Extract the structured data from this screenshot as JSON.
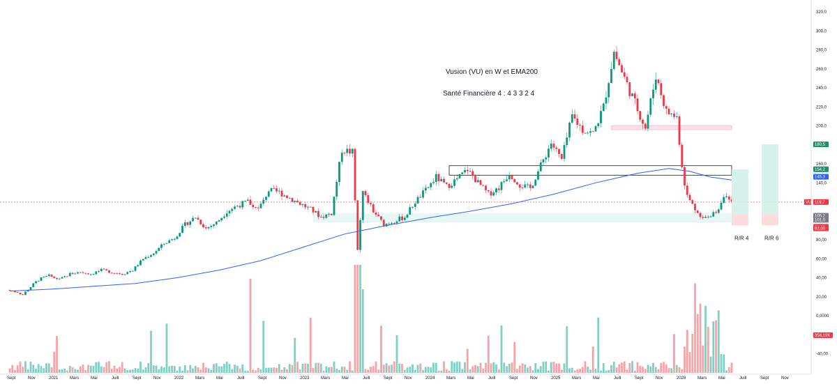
{
  "chart_data": {
    "type": "candlestick",
    "ticker": "VU",
    "annotations": {
      "title": "Vusion  (VU)  en  W et  EMA200",
      "subtitle": "Santé Financière 4 : 4 3 3 2 4"
    },
    "y_ticks": [
      320,
      300,
      280,
      260,
      240,
      220,
      200,
      180,
      160,
      140,
      120,
      100,
      80,
      60,
      40,
      20,
      0,
      -20,
      -40
    ],
    "y_tick_labels": [
      "320,0",
      "300,0",
      "280,0",
      "260,0",
      "240,0",
      "220,0",
      "200,0",
      "180,0",
      "160,0",
      "140,0",
      "120,0",
      "100,0",
      "80,00",
      "60,00",
      "40,00",
      "20,00",
      "0,0000",
      "-20,00",
      "-40,00"
    ],
    "x_ticks": [
      {
        "label": "Sept",
        "x": 0
      },
      {
        "label": "Nov",
        "x": 2
      },
      {
        "label": "2021",
        "x": 4
      },
      {
        "label": "Mars",
        "x": 6
      },
      {
        "label": "Mai",
        "x": 8
      },
      {
        "label": "Juill",
        "x": 10
      },
      {
        "label": "Sept",
        "x": 12
      },
      {
        "label": "Nov",
        "x": 14
      },
      {
        "label": "2022",
        "x": 16
      },
      {
        "label": "Mars",
        "x": 18
      },
      {
        "label": "Mai",
        "x": 20
      },
      {
        "label": "Juill",
        "x": 22
      },
      {
        "label": "Sept",
        "x": 24
      },
      {
        "label": "Nov",
        "x": 26
      },
      {
        "label": "2023",
        "x": 28
      },
      {
        "label": "Mars",
        "x": 30
      },
      {
        "label": "Mai",
        "x": 32
      },
      {
        "label": "Juill",
        "x": 34
      },
      {
        "label": "Sept",
        "x": 36
      },
      {
        "label": "Nov",
        "x": 38
      },
      {
        "label": "2024",
        "x": 40
      },
      {
        "label": "Mars",
        "x": 42
      },
      {
        "label": "Mai",
        "x": 44
      },
      {
        "label": "Juill",
        "x": 46
      },
      {
        "label": "Sept",
        "x": 48
      },
      {
        "label": "Nov",
        "x": 50
      },
      {
        "label": "2025",
        "x": 52
      },
      {
        "label": "Mars",
        "x": 54
      },
      {
        "label": "Mai",
        "x": 56
      },
      {
        "label": "Juill",
        "x": 58
      },
      {
        "label": "Sept",
        "x": 60
      },
      {
        "label": "Nov",
        "x": 62
      },
      {
        "label": "2026",
        "x": 64
      },
      {
        "label": "Mars",
        "x": 66
      },
      {
        "label": "Mai",
        "x": 68
      },
      {
        "label": "Juill",
        "x": 70
      },
      {
        "label": "Sept",
        "x": 72
      },
      {
        "label": "Nov",
        "x": 74
      }
    ],
    "price_path": [
      [
        0,
        27
      ],
      [
        1,
        25
      ],
      [
        1.5,
        22
      ],
      [
        2,
        28
      ],
      [
        3,
        38
      ],
      [
        4,
        42
      ],
      [
        5,
        38
      ],
      [
        6,
        44
      ],
      [
        7,
        46
      ],
      [
        8,
        44
      ],
      [
        9,
        48
      ],
      [
        10,
        46
      ],
      [
        11,
        44
      ],
      [
        12,
        48
      ],
      [
        13,
        60
      ],
      [
        14,
        66
      ],
      [
        15,
        76
      ],
      [
        16,
        82
      ],
      [
        17,
        96
      ],
      [
        18,
        104
      ],
      [
        19,
        92
      ],
      [
        20,
        98
      ],
      [
        21,
        110
      ],
      [
        22,
        116
      ],
      [
        23,
        120
      ],
      [
        24,
        112
      ],
      [
        25,
        132
      ],
      [
        26,
        130
      ],
      [
        27,
        124
      ],
      [
        28,
        118
      ],
      [
        29,
        112
      ],
      [
        30,
        104
      ],
      [
        31,
        108
      ],
      [
        32,
        175
      ],
      [
        33,
        172
      ],
      [
        33.5,
        70
      ],
      [
        34,
        130
      ],
      [
        35,
        110
      ],
      [
        36,
        96
      ],
      [
        37,
        100
      ],
      [
        38,
        104
      ],
      [
        39,
        120
      ],
      [
        40,
        132
      ],
      [
        41,
        146
      ],
      [
        42,
        136
      ],
      [
        43,
        144
      ],
      [
        44,
        154
      ],
      [
        45,
        140
      ],
      [
        46,
        128
      ],
      [
        47,
        135
      ],
      [
        48,
        150
      ],
      [
        49,
        138
      ],
      [
        50,
        134
      ],
      [
        51,
        158
      ],
      [
        52,
        182
      ],
      [
        53,
        164
      ],
      [
        54,
        210
      ],
      [
        55,
        196
      ],
      [
        56,
        192
      ],
      [
        57,
        220
      ],
      [
        58,
        278
      ],
      [
        59,
        250
      ],
      [
        60,
        224
      ],
      [
        61,
        198
      ],
      [
        62,
        253
      ],
      [
        63,
        215
      ],
      [
        64,
        209
      ],
      [
        64.6,
        148
      ],
      [
        65,
        126
      ],
      [
        66,
        108
      ],
      [
        67,
        102
      ],
      [
        68,
        113
      ],
      [
        68.5,
        128
      ],
      [
        69,
        119.7
      ]
    ],
    "ema200": [
      [
        0,
        26
      ],
      [
        4,
        28
      ],
      [
        8,
        31
      ],
      [
        12,
        34
      ],
      [
        16,
        40
      ],
      [
        20,
        48
      ],
      [
        24,
        58
      ],
      [
        28,
        72
      ],
      [
        32,
        86
      ],
      [
        36,
        95
      ],
      [
        40,
        103
      ],
      [
        44,
        110
      ],
      [
        48,
        118
      ],
      [
        52,
        128
      ],
      [
        56,
        140
      ],
      [
        60,
        150
      ],
      [
        63,
        155
      ],
      [
        65,
        152
      ],
      [
        67,
        146
      ],
      [
        69,
        143
      ]
    ],
    "current_price": 119.7,
    "lines": {
      "resistance_low": 148,
      "resistance_high": 158
    },
    "zones": {
      "support": {
        "from": 98,
        "to": 108
      },
      "top_zone": {
        "from": 196,
        "to": 200
      }
    },
    "rr_boxes": [
      {
        "label": "R/R 4",
        "stop_low": 95,
        "stop_high": 107,
        "target": 154.2
      },
      {
        "label": "R/R 6",
        "stop_low": 95,
        "stop_high": 107,
        "target": 180.5
      }
    ],
    "price_tags": [
      {
        "value": 180.5,
        "label": "180,5",
        "color": "#1e8f6a"
      },
      {
        "value": 154.2,
        "label": "154,2",
        "color": "#1e8f6a"
      },
      {
        "value": 146.3,
        "label": "146,3",
        "color": "#2962ff"
      },
      {
        "value": 119.7,
        "label": "119,7",
        "color": "#f23645",
        "ticker": "VU"
      },
      {
        "value": 105.2,
        "label": "105,2",
        "color": "#787b86"
      },
      {
        "value": 101.0,
        "label": "101,0",
        "color": "#787b86"
      },
      {
        "value": 93.7,
        "label": "93,70",
        "color": "#f23645"
      },
      {
        "value": 92.0,
        "label": "92,00",
        "color": "#f23645"
      }
    ],
    "volume_tag": {
      "label": "356,19K",
      "color": "#f23645"
    },
    "colors": {
      "up": "#089981",
      "down": "#f23645",
      "ema": "#2962ff",
      "volume_up": "#7fcfc2",
      "volume_down": "#f6a3a8"
    }
  }
}
